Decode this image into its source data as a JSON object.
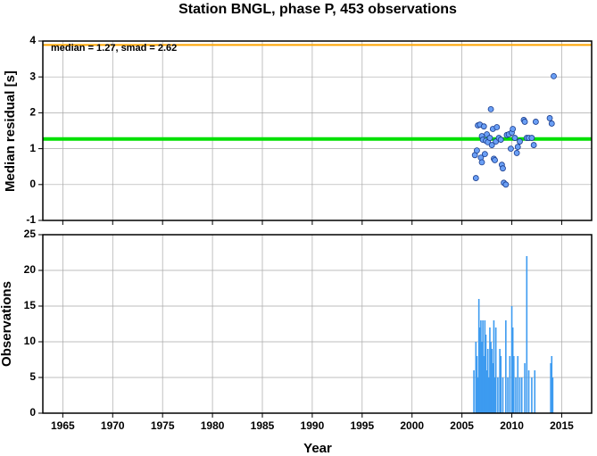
{
  "chart_data": [
    {
      "type": "scatter",
      "title": "Station BNGL, phase P, 453 observations",
      "annotation": "median = 1.27, smad = 2.62",
      "y_label": "Median residual [s]",
      "xlim": [
        1963,
        2018
      ],
      "xticks": [
        1965,
        1970,
        1975,
        1980,
        1985,
        1990,
        1995,
        2000,
        2005,
        2010,
        2015
      ],
      "ylim": [
        -1,
        4
      ],
      "yticks": [
        -1,
        0,
        1,
        2,
        3,
        4
      ],
      "grid": true,
      "color": "#6a9ff5",
      "reference_lines": [
        {
          "value": 3.89,
          "color": "#ffa500"
        },
        {
          "value": 1.27,
          "color": "#00e000"
        }
      ],
      "x": [
        2006.3,
        2006.4,
        2006.5,
        2006.6,
        2006.8,
        2006.9,
        2007.0,
        2007.0,
        2007.1,
        2007.2,
        2007.3,
        2007.4,
        2007.5,
        2007.6,
        2007.8,
        2007.9,
        2008.0,
        2008.1,
        2008.2,
        2008.3,
        2008.4,
        2008.5,
        2008.7,
        2008.9,
        2009.0,
        2009.1,
        2009.2,
        2009.4,
        2009.5,
        2009.7,
        2009.9,
        2010.0,
        2010.1,
        2010.3,
        2010.5,
        2010.6,
        2010.8,
        2011.2,
        2011.3,
        2011.5,
        2011.7,
        2012.0,
        2012.2,
        2012.4,
        2013.8,
        2014.0,
        2014.2
      ],
      "values": [
        0.82,
        0.18,
        0.95,
        1.65,
        1.67,
        0.75,
        0.62,
        1.35,
        1.25,
        1.62,
        0.85,
        1.22,
        1.4,
        1.18,
        1.3,
        2.1,
        1.1,
        1.55,
        0.72,
        0.68,
        1.2,
        1.6,
        1.3,
        1.25,
        0.55,
        0.45,
        0.05,
        0.0,
        1.38,
        1.4,
        1.0,
        1.45,
        1.55,
        1.3,
        0.88,
        1.05,
        1.2,
        1.8,
        1.75,
        1.3,
        1.3,
        1.3,
        1.1,
        1.75,
        1.85,
        1.7,
        3.02
      ]
    },
    {
      "type": "bar",
      "x_label": "Year",
      "y_label": "Observations",
      "xlim": [
        1963,
        2018
      ],
      "xticks": [
        1965,
        1970,
        1975,
        1980,
        1985,
        1990,
        1995,
        2000,
        2005,
        2010,
        2015
      ],
      "ylim": [
        0,
        25
      ],
      "yticks": [
        0,
        5,
        10,
        15,
        20,
        25
      ],
      "grid": true,
      "color": "#3d9bf0",
      "x": [
        2006.2,
        2006.4,
        2006.5,
        2006.6,
        2006.7,
        2006.8,
        2006.9,
        2007.0,
        2007.1,
        2007.2,
        2007.3,
        2007.4,
        2007.5,
        2007.6,
        2007.7,
        2007.8,
        2007.9,
        2008.0,
        2008.1,
        2008.2,
        2008.3,
        2008.4,
        2008.6,
        2008.8,
        2008.9,
        2009.1,
        2009.4,
        2009.6,
        2009.8,
        2010.0,
        2010.1,
        2010.2,
        2010.4,
        2010.6,
        2010.8,
        2011.0,
        2011.3,
        2011.5,
        2011.7,
        2012.0,
        2012.3,
        2013.9,
        2014.0,
        2014.1
      ],
      "values": [
        6,
        10,
        8,
        5,
        16,
        12,
        13,
        10,
        13,
        8,
        13,
        11,
        6,
        9,
        5,
        12,
        10,
        9,
        7,
        13,
        5,
        12,
        5,
        9,
        8,
        5,
        13,
        5,
        8,
        15,
        12,
        8,
        5,
        8,
        5,
        5,
        7,
        22,
        6,
        5,
        6,
        7,
        8,
        5
      ]
    }
  ]
}
